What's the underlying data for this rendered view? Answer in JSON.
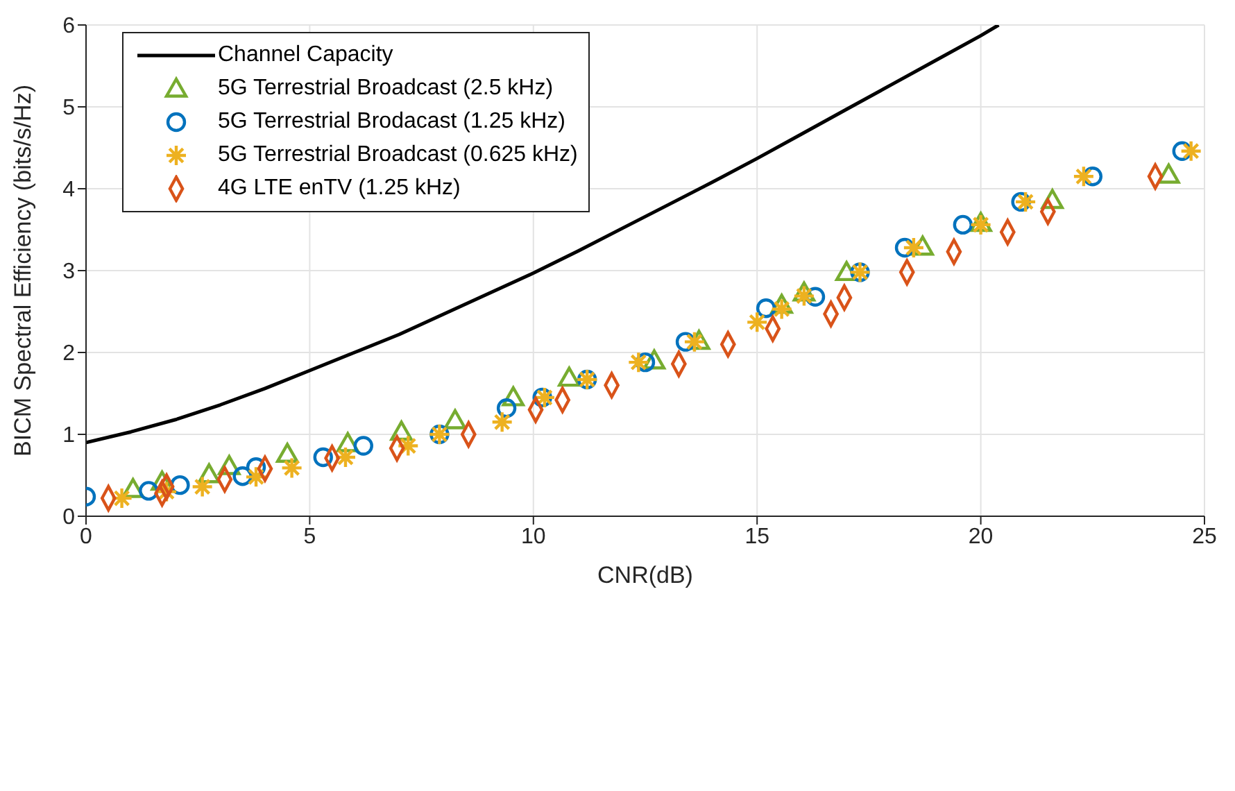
{
  "chart_data": {
    "type": "scatter",
    "xlabel": "CNR(dB)",
    "ylabel": "BICM Spectral Efficiency (bits/s/Hz)",
    "xlim": [
      0,
      25
    ],
    "ylim": [
      0,
      6
    ],
    "xticks": [
      0,
      5,
      10,
      15,
      20,
      25
    ],
    "yticks": [
      0,
      1,
      2,
      3,
      4,
      5,
      6
    ],
    "grid": true,
    "legend": "top left",
    "series": [
      {
        "name": "Channel Capacity",
        "type": "line",
        "marker": "none",
        "line_style": "solid",
        "color": "#000000",
        "x": [
          0,
          1,
          2,
          3,
          4,
          5,
          6,
          7,
          8,
          9,
          10,
          11,
          12,
          13,
          14,
          15,
          16,
          17,
          18,
          19,
          20,
          20.4
        ],
        "values": [
          0.9,
          1.03,
          1.18,
          1.36,
          1.56,
          1.78,
          2.0,
          2.22,
          2.47,
          2.72,
          2.97,
          3.24,
          3.52,
          3.8,
          4.08,
          4.37,
          4.67,
          4.97,
          5.27,
          5.57,
          5.87,
          6.0
        ]
      },
      {
        "name": "5G Terrestrial Broadcast (2.5 kHz)",
        "marker": "triangle",
        "color": "#77ac30",
        "x": [
          1.05,
          1.7,
          2.75,
          3.2,
          4.5,
          5.85,
          7.05,
          8.25,
          9.55,
          10.8,
          12.7,
          13.7,
          15.55,
          16.05,
          17.0,
          18.7,
          20.0,
          21.6,
          24.2
        ],
        "values": [
          0.33,
          0.42,
          0.51,
          0.61,
          0.76,
          0.89,
          1.03,
          1.17,
          1.45,
          1.69,
          1.9,
          2.14,
          2.58,
          2.73,
          2.98,
          3.29,
          3.58,
          3.86,
          4.17
        ]
      },
      {
        "name": "5G Terrestrial Brodacast (1.25 kHz)",
        "marker": "circle",
        "color": "#0072bd",
        "x": [
          0,
          1.4,
          2.1,
          3.5,
          3.8,
          5.3,
          6.2,
          7.9,
          9.4,
          10.2,
          11.2,
          12.5,
          13.4,
          15.2,
          16.3,
          17.3,
          18.3,
          19.6,
          20.9,
          22.5,
          24.5
        ],
        "values": [
          0.24,
          0.31,
          0.38,
          0.49,
          0.6,
          0.72,
          0.86,
          1.0,
          1.32,
          1.45,
          1.67,
          1.88,
          2.13,
          2.54,
          2.68,
          2.98,
          3.28,
          3.56,
          3.84,
          4.15,
          4.46
        ]
      },
      {
        "name": "5G Terrestrial Broadcast (0.625 kHz)",
        "marker": "cross",
        "color": "#edb120",
        "x": [
          0.8,
          1.8,
          2.6,
          3.8,
          4.6,
          5.8,
          7.2,
          7.9,
          9.3,
          10.25,
          11.2,
          12.35,
          13.6,
          15.0,
          15.55,
          16.05,
          17.3,
          18.5,
          20.0,
          21.0,
          22.3,
          24.7
        ],
        "values": [
          0.22,
          0.3,
          0.36,
          0.48,
          0.59,
          0.72,
          0.86,
          1.0,
          1.15,
          1.45,
          1.67,
          1.88,
          2.13,
          2.37,
          2.53,
          2.69,
          2.98,
          3.28,
          3.56,
          3.84,
          4.15,
          4.46
        ]
      },
      {
        "name": "4G LTE enTV (1.25 kHz)",
        "marker": "diamond",
        "color": "#d95319",
        "x": [
          0.5,
          1.7,
          1.8,
          3.1,
          4.0,
          5.5,
          6.95,
          8.55,
          10.05,
          10.65,
          11.75,
          13.25,
          14.35,
          15.35,
          16.65,
          16.95,
          18.35,
          19.4,
          20.6,
          21.5,
          23.9
        ],
        "values": [
          0.22,
          0.28,
          0.36,
          0.45,
          0.58,
          0.71,
          0.83,
          1.0,
          1.3,
          1.42,
          1.6,
          1.86,
          2.1,
          2.29,
          2.47,
          2.67,
          2.98,
          3.23,
          3.47,
          3.72,
          4.15
        ]
      }
    ]
  }
}
